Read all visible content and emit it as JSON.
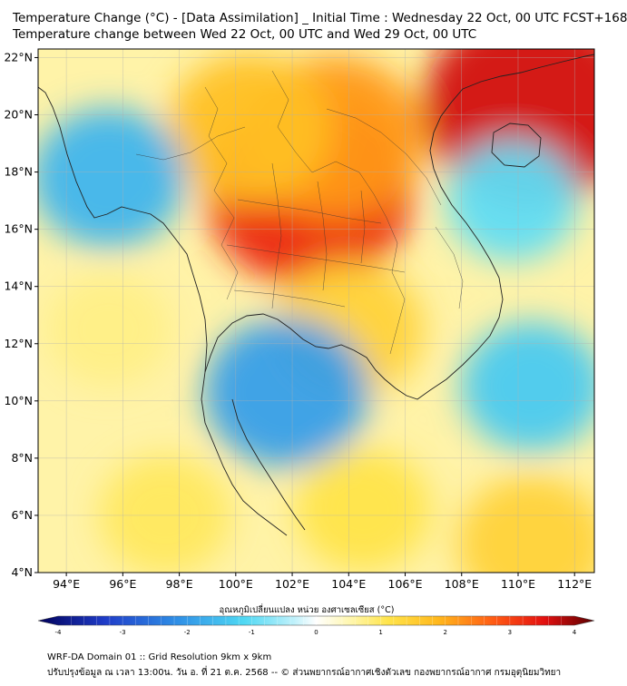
{
  "title": {
    "line1": "Temperature Change (°C) - [Data Assimilation] _ Initial Time : Wednesday 22 Oct, 00 UTC FCST+168",
    "line2": "Temperature change between Wed 22 Oct, 00 UTC and Wed 29 Oct, 00 UTC"
  },
  "axes": {
    "lat_ticks": [
      22,
      20,
      18,
      16,
      14,
      12,
      10,
      8,
      6,
      4
    ],
    "lat_labels": [
      "22°N",
      "20°N",
      "18°N",
      "16°N",
      "14°N",
      "12°N",
      "10°N",
      "8°N",
      "6°N",
      "4°N"
    ],
    "lon_ticks": [
      94,
      96,
      98,
      100,
      102,
      104,
      106,
      108,
      110,
      112
    ],
    "lon_labels": [
      "94°E",
      "96°E",
      "98°E",
      "100°E",
      "102°E",
      "104°E",
      "106°E",
      "108°E",
      "110°E",
      "112°E"
    ],
    "lat_range": [
      4,
      22.3
    ],
    "lon_range": [
      93,
      112.7
    ]
  },
  "colorbar": {
    "label": "อุณหภูมิเปลี่ยนแปลง หน่วย องศาเซลเซียส (°C)",
    "min": -4,
    "max": 4,
    "ticks": [
      -4,
      -3,
      -2,
      -1,
      0,
      1,
      2,
      3,
      4
    ],
    "tick_labels": [
      "-4",
      "-3",
      "-2",
      "-1",
      "0",
      "1",
      "2",
      "3",
      "4"
    ]
  },
  "field_regions": [
    {
      "name": "south-china-warm",
      "lon": 110.5,
      "lat": 20.3,
      "value": 3.3
    },
    {
      "name": "northeast-thailand-warm",
      "lon": 102.6,
      "lat": 17.3,
      "value": 3.0
    },
    {
      "name": "laos-north-warm",
      "lon": 103.5,
      "lat": 19.2,
      "value": 2.2
    },
    {
      "name": "myanmar-central-warm",
      "lon": 100.5,
      "lat": 19.5,
      "value": 1.8
    },
    {
      "name": "cambodia-warm",
      "lon": 104.0,
      "lat": 12.5,
      "value": 1.4
    },
    {
      "name": "andaman-cool",
      "lon": 95.5,
      "lat": 17.8,
      "value": -1.5
    },
    {
      "name": "gulf-of-thailand-cool",
      "lon": 101.8,
      "lat": 10.3,
      "value": -1.8
    },
    {
      "name": "south-china-sea-cool",
      "lon": 110.5,
      "lat": 10.5,
      "value": -1.2
    },
    {
      "name": "east-vietnam-sea-cool",
      "lon": 109.8,
      "lat": 17.0,
      "value": -0.9
    },
    {
      "name": "sumatra-north-warm",
      "lon": 97.5,
      "lat": 6.0,
      "value": 0.9
    },
    {
      "name": "malaysia-warm",
      "lon": 104.5,
      "lat": 6.2,
      "value": 1.0
    },
    {
      "name": "borneo-sea-warm",
      "lon": 110.5,
      "lat": 5.0,
      "value": 1.4
    },
    {
      "name": "andaman-sea-east-warm",
      "lon": 95.5,
      "lat": 12.5,
      "value": 0.7
    }
  ],
  "colors": {
    "coast": "#222222",
    "grid": "#b0b0b0"
  },
  "footer": {
    "line1": "WRF-DA Domain 01 :: Grid Resolution 9km x 9km",
    "line2": "ปรับปรุงข้อมูล ณ เวลา 13:00น. วัน อ. ที่ 21 ต.ค. 2568 -- © ส่วนพยากรณ์อากาศเชิงตัวเลข กองพยากรณ์อากาศ กรมอุตุนิยมวิทยา"
  }
}
